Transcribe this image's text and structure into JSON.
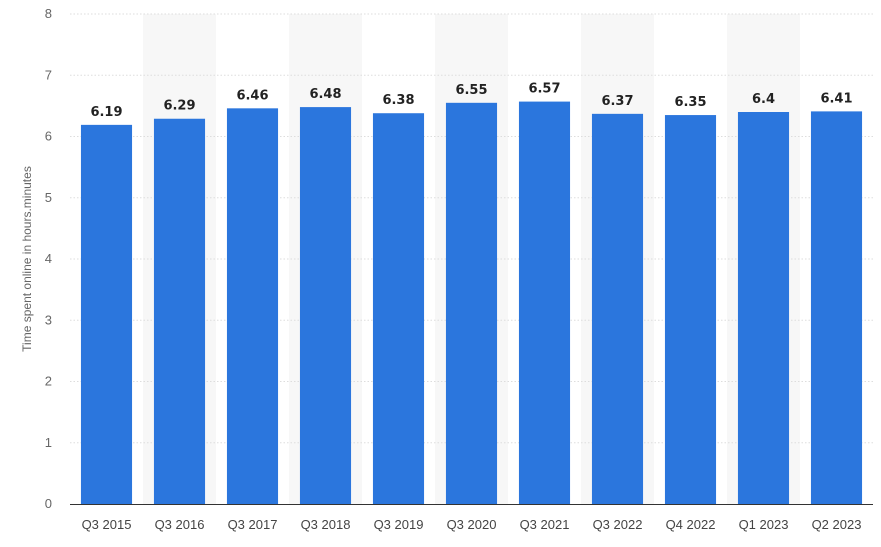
{
  "chart_data": {
    "type": "bar",
    "categories": [
      "Q3 2015",
      "Q3 2016",
      "Q3 2017",
      "Q3 2018",
      "Q3 2019",
      "Q3 2020",
      "Q3 2021",
      "Q3 2022",
      "Q4 2022",
      "Q1 2023",
      "Q2 2023"
    ],
    "values": [
      6.19,
      6.29,
      6.46,
      6.48,
      6.38,
      6.55,
      6.57,
      6.37,
      6.35,
      6.4,
      6.41
    ],
    "value_labels": [
      "6.19",
      "6.29",
      "6.46",
      "6.48",
      "6.38",
      "6.55",
      "6.57",
      "6.37",
      "6.35",
      "6.4",
      "6.41"
    ],
    "title": "",
    "xlabel": "",
    "ylabel": "Time spent online in hours.minutes",
    "ylim": [
      0,
      8
    ],
    "yticks": [
      "0",
      "1",
      "2",
      "3",
      "4",
      "5",
      "6",
      "7",
      "8"
    ],
    "grid": true,
    "alternating_band_color": "#f7f7f7",
    "bar_color": "#2b76dd",
    "grid_color": "#dddddd"
  }
}
